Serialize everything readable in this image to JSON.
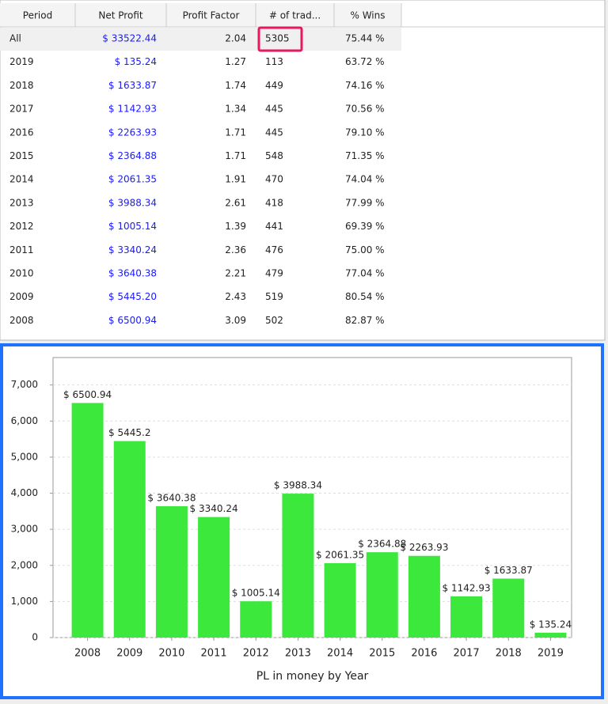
{
  "table": {
    "columns": [
      "Period",
      "Net Profit",
      "Profit Factor",
      "# of trad...",
      "% Wins"
    ],
    "rows": [
      [
        "All",
        "$ 33522.44",
        "2.04",
        "5305",
        "75.44 %"
      ],
      [
        "2019",
        "$ 135.24",
        "1.27",
        "113",
        "63.72 %"
      ],
      [
        "2018",
        "$ 1633.87",
        "1.74",
        "449",
        "74.16 %"
      ],
      [
        "2017",
        "$ 1142.93",
        "1.34",
        "445",
        "70.56 %"
      ],
      [
        "2016",
        "$ 2263.93",
        "1.71",
        "445",
        "79.10 %"
      ],
      [
        "2015",
        "$ 2364.88",
        "1.71",
        "548",
        "71.35 %"
      ],
      [
        "2014",
        "$ 2061.35",
        "1.91",
        "470",
        "74.04 %"
      ],
      [
        "2013",
        "$ 3988.34",
        "2.61",
        "418",
        "77.99 %"
      ],
      [
        "2012",
        "$ 1005.14",
        "1.39",
        "441",
        "69.39 %"
      ],
      [
        "2011",
        "$ 3340.24",
        "2.36",
        "476",
        "75.00 %"
      ],
      [
        "2010",
        "$ 3640.38",
        "2.21",
        "479",
        "77.04 %"
      ],
      [
        "2009",
        "$ 5445.20",
        "2.43",
        "519",
        "80.54 %"
      ],
      [
        "2008",
        "$ 6500.94",
        "3.09",
        "502",
        "82.87 %"
      ]
    ]
  },
  "chart_data": {
    "type": "bar",
    "x_label": "PL in money by Year",
    "categories": [
      "2008",
      "2009",
      "2010",
      "2011",
      "2012",
      "2013",
      "2014",
      "2015",
      "2016",
      "2017",
      "2018",
      "2019"
    ],
    "values": [
      6500.94,
      5445.2,
      3640.38,
      3340.24,
      1005.14,
      3988.34,
      2061.35,
      2364.88,
      2263.93,
      1142.93,
      1633.87,
      135.24
    ],
    "value_labels": [
      "$ 6500.94",
      "$ 5445.2",
      "$ 3640.38",
      "$ 3340.24",
      "$ 1005.14",
      "$ 3988.34",
      "$ 2061.35",
      "$ 2364.88",
      "$ 2263.93",
      "$ 1142.93",
      "$ 1633.87",
      "$ 135.24"
    ],
    "color": "#3de83d",
    "ylim": [
      0,
      7760
    ],
    "yticks": [
      0,
      {
        "value": 1000,
        "label": "1,000"
      },
      {
        "value": 2000,
        "label": "2,000"
      },
      {
        "value": 3000,
        "label": "3,000"
      },
      {
        "value": 4000,
        "label": "4,000"
      },
      {
        "value": 5000,
        "label": "5,000"
      },
      {
        "value": 6000,
        "label": "6,000"
      },
      {
        "value": 7000,
        "label": "7,000"
      }
    ],
    "grid": true
  }
}
